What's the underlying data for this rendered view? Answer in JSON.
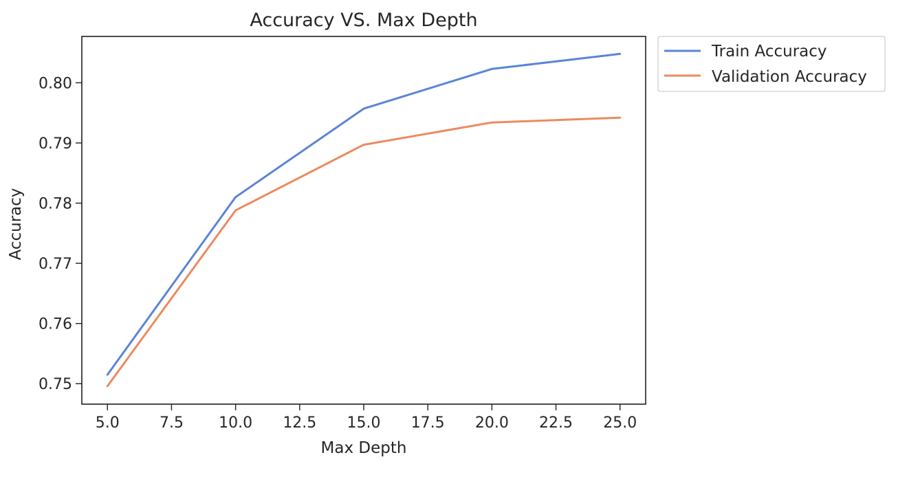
{
  "chart_data": {
    "type": "line",
    "title": "Accuracy VS. Max Depth",
    "xlabel": "Max Depth",
    "ylabel": "Accuracy",
    "x": [
      5,
      10,
      15,
      20,
      25
    ],
    "xlim": [
      4.0,
      26.0
    ],
    "ylim": [
      0.7466,
      0.8077
    ],
    "xticks": [
      5.0,
      7.5,
      10.0,
      12.5,
      15.0,
      17.5,
      20.0,
      22.5,
      25.0
    ],
    "xtick_labels": [
      "5.0",
      "7.5",
      "10.0",
      "12.5",
      "15.0",
      "17.5",
      "20.0",
      "22.5",
      "25.0"
    ],
    "yticks": [
      0.75,
      0.76,
      0.77,
      0.78,
      0.79,
      0.8
    ],
    "ytick_labels": [
      "0.75",
      "0.76",
      "0.77",
      "0.78",
      "0.79",
      "0.80"
    ],
    "grid": false,
    "legend_position": "outside-top-right",
    "series": [
      {
        "name": "Train Accuracy",
        "color": "#5b84d6",
        "values": [
          0.7515,
          0.781,
          0.7957,
          0.8023,
          0.8048
        ]
      },
      {
        "name": "Validation Accuracy",
        "color": "#ec8a5e",
        "values": [
          0.7496,
          0.7788,
          0.7897,
          0.7934,
          0.7942
        ]
      }
    ]
  }
}
